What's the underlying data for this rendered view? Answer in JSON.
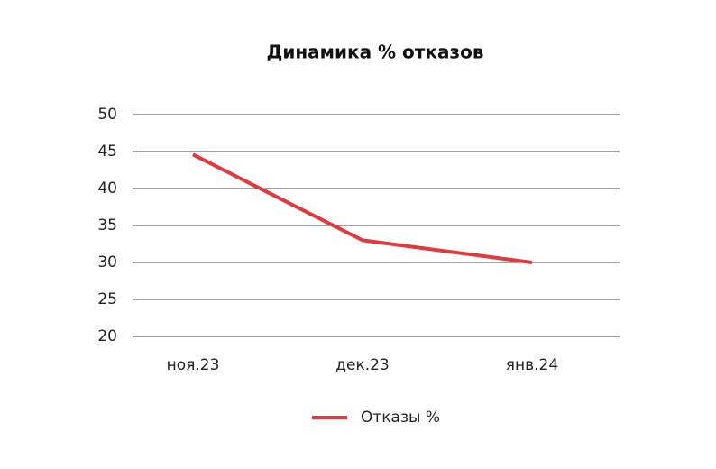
{
  "chart_data": {
    "type": "line",
    "title": "Динамика % отказов",
    "categories": [
      "ноя.23",
      "дек.23",
      "янв.24"
    ],
    "series": [
      {
        "name": "Отказы %",
        "color": "#e0393e",
        "values": [
          44.6,
          33,
          30
        ]
      }
    ],
    "ylim": [
      20,
      50
    ],
    "yticks": [
      20,
      25,
      30,
      35,
      40,
      45,
      50
    ],
    "grid": true
  }
}
